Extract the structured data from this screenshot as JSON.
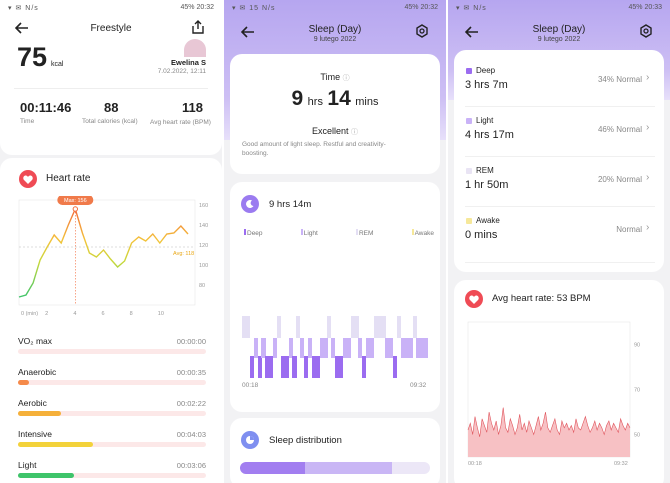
{
  "status_left": {
    "p1": "▾ ✉ N/s",
    "p2": "▾ ✉ 15 N/s",
    "p3": "▾ ✉ N/s"
  },
  "status_right": {
    "p1": "45% 20:32",
    "p2": "45% 20:32",
    "p3": "45% 20:33"
  },
  "workout": {
    "title": "Freestyle",
    "calories_value": "75",
    "calories_unit": "kcal",
    "user_name": "Ewelina S",
    "date": "7.02.2022, 12:11",
    "stats": [
      {
        "value": "00:11:46",
        "label": "Time"
      },
      {
        "value": "88",
        "label": "Total calories (kcal)"
      },
      {
        "value": "118",
        "label": "Avg heart rate (BPM)"
      }
    ],
    "heart_rate_title": "Heart rate",
    "max_badge": "Max: 156",
    "avg_label": "Avg: 118",
    "zones": [
      {
        "name": "VO₂ max",
        "time": "00:00:00",
        "fraction": 0.0,
        "color": "#f5a0a0"
      },
      {
        "name": "Anaerobic",
        "time": "00:00:35",
        "fraction": 0.06,
        "color": "#f58a4a"
      },
      {
        "name": "Aerobic",
        "time": "00:02:22",
        "fraction": 0.23,
        "color": "#f5b03a"
      },
      {
        "name": "Intensive",
        "time": "00:04:03",
        "fraction": 0.4,
        "color": "#f3d23a"
      },
      {
        "name": "Light",
        "time": "00:03:06",
        "fraction": 0.3,
        "color": "#3ec46a"
      }
    ]
  },
  "sleep": {
    "title": "Sleep (Day)",
    "date": "9 lutego 2022",
    "time_label": "Time",
    "hours_value": "9",
    "hours_unit": "hrs",
    "mins_value": "14",
    "mins_unit": "mins",
    "quality": "Excellent",
    "description": "Good amount of light sleep. Restful and creativity-boosting.",
    "total_label": "9 hrs 14m",
    "legend": [
      "Deep",
      "Light",
      "REM",
      "Awake"
    ],
    "start_time": "00:18",
    "end_time": "09:32",
    "distribution_title": "Sleep distribution",
    "distribution": {
      "deep": 0.34,
      "light": 0.46,
      "rem": 0.2
    }
  },
  "sleep_detail": {
    "title": "Sleep (Day)",
    "date": "9 lutego 2022",
    "stages": [
      {
        "name": "Deep",
        "duration": "3 hrs 7m",
        "status": "34% Normal",
        "color": "#9b6cf0"
      },
      {
        "name": "Light",
        "duration": "4 hrs 17m",
        "status": "46% Normal",
        "color": "#c9b2f7"
      },
      {
        "name": "REM",
        "duration": "1 hr 50m",
        "status": "20% Normal",
        "color": "#e9e4f4"
      },
      {
        "name": "Awake",
        "duration": "0 mins",
        "status": "Normal",
        "color": "#f6e89a"
      }
    ],
    "avg_hr_label": "Avg heart rate: 53 BPM",
    "start_time": "00:18",
    "end_time": "09:32"
  },
  "chart_data": [
    {
      "type": "line",
      "title": "Heart rate",
      "x": [
        0,
        0.5,
        1,
        1.5,
        2,
        2.5,
        3,
        3.5,
        4,
        4.5,
        5,
        5.5,
        6,
        6.5,
        7,
        7.5,
        8,
        8.5,
        9,
        9.5,
        10,
        10.5,
        11,
        11.5,
        12
      ],
      "y": [
        68,
        70,
        82,
        105,
        118,
        130,
        122,
        140,
        156,
        132,
        112,
        108,
        115,
        106,
        98,
        104,
        122,
        128,
        124,
        131,
        122,
        131,
        132,
        139,
        131
      ],
      "x_ticks": [
        "0 (min)",
        "2",
        "4",
        "6",
        "8",
        "10"
      ],
      "y_ticks": [
        80,
        100,
        120,
        140,
        160
      ],
      "xlim": [
        0,
        12.5
      ],
      "ylim": [
        60,
        165
      ],
      "avg": 118,
      "max": 156
    },
    {
      "type": "line",
      "title": "Avg heart rate: 53 BPM",
      "y_ticks": [
        50,
        70,
        90
      ],
      "ylim": [
        40,
        100
      ],
      "x_ticks": [
        "00:18",
        "09:32"
      ],
      "y": [
        52,
        55,
        50,
        58,
        53,
        49,
        57,
        54,
        51,
        60,
        55,
        52,
        56,
        50,
        54,
        62,
        53,
        51,
        57,
        54,
        50,
        53,
        59,
        52,
        55,
        51,
        56,
        53,
        50,
        54,
        58,
        52,
        55,
        60,
        53,
        51,
        54,
        57,
        52,
        50,
        56,
        53,
        55,
        52,
        54,
        51,
        57,
        53,
        52,
        55,
        58,
        54,
        51,
        53,
        56,
        52,
        55,
        53,
        50,
        54,
        56,
        52,
        55,
        53,
        51,
        57,
        54,
        52,
        55,
        53
      ]
    }
  ]
}
